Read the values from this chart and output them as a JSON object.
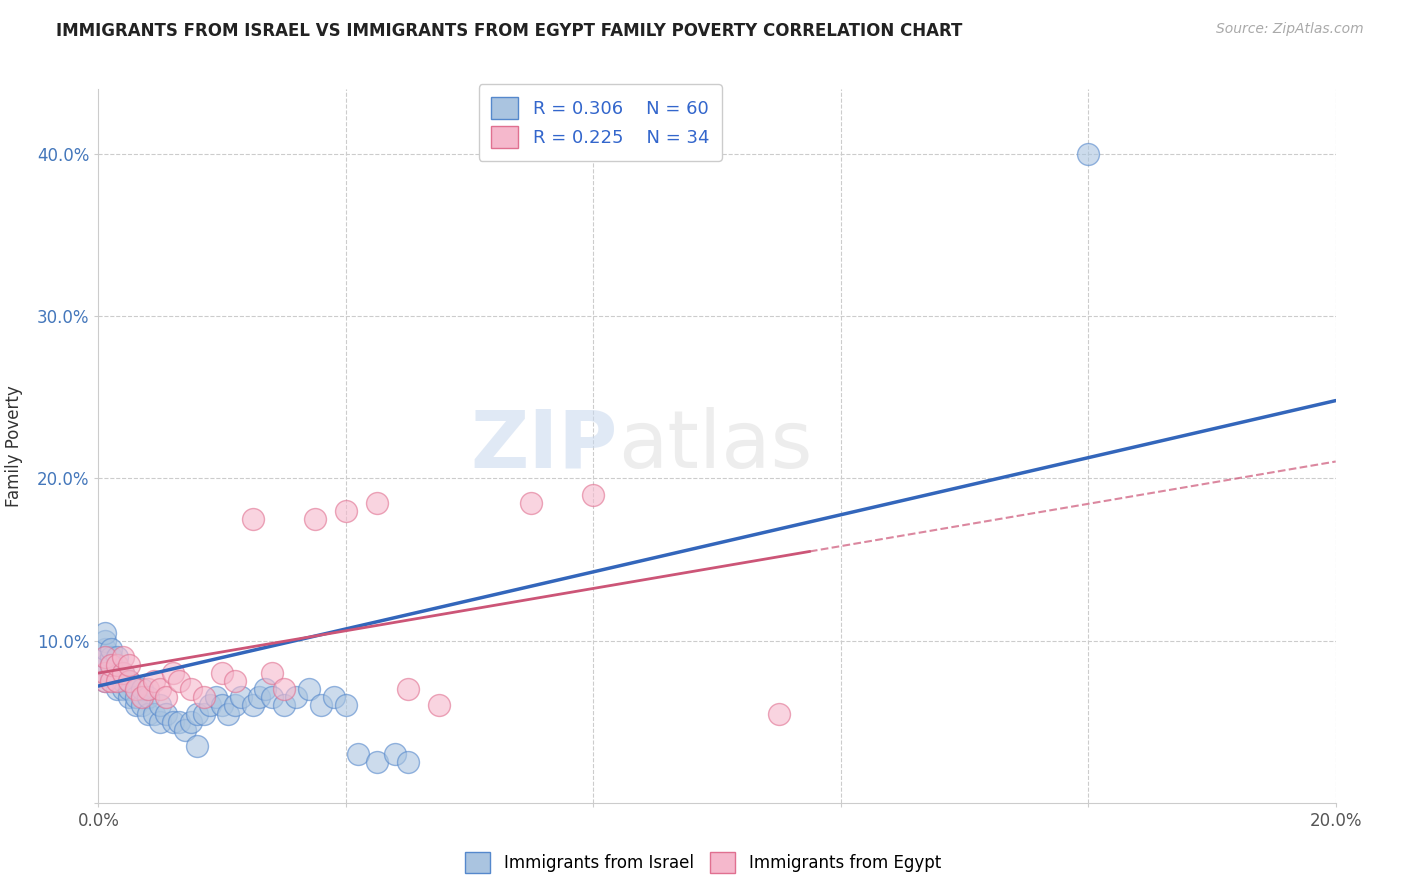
{
  "title": "IMMIGRANTS FROM ISRAEL VS IMMIGRANTS FROM EGYPT FAMILY POVERTY CORRELATION CHART",
  "source": "Source: ZipAtlas.com",
  "ylabel": "Family Poverty",
  "xlim": [
    0.0,
    0.2
  ],
  "ylim": [
    0.0,
    0.44
  ],
  "israel_color": "#aac4e0",
  "israel_edge_color": "#5588cc",
  "egypt_color": "#f5b8cc",
  "egypt_edge_color": "#e07090",
  "israel_line_color": "#3366bb",
  "egypt_line_color": "#cc5577",
  "israel_R": 0.306,
  "israel_N": 60,
  "egypt_R": 0.225,
  "egypt_N": 34,
  "legend_text_color": "#3366cc",
  "watermark_zip": "ZIP",
  "watermark_atlas": "atlas",
  "israel_x": [
    0.001,
    0.001,
    0.001,
    0.001,
    0.001,
    0.001,
    0.001,
    0.002,
    0.002,
    0.002,
    0.002,
    0.002,
    0.003,
    0.003,
    0.003,
    0.003,
    0.004,
    0.004,
    0.004,
    0.005,
    0.005,
    0.005,
    0.006,
    0.006,
    0.007,
    0.007,
    0.008,
    0.008,
    0.009,
    0.01,
    0.01,
    0.011,
    0.012,
    0.013,
    0.014,
    0.015,
    0.016,
    0.016,
    0.017,
    0.018,
    0.019,
    0.02,
    0.021,
    0.022,
    0.023,
    0.025,
    0.026,
    0.027,
    0.028,
    0.03,
    0.032,
    0.034,
    0.036,
    0.038,
    0.04,
    0.042,
    0.045,
    0.048,
    0.05,
    0.16
  ],
  "israel_y": [
    0.075,
    0.08,
    0.085,
    0.09,
    0.095,
    0.1,
    0.105,
    0.075,
    0.08,
    0.085,
    0.09,
    0.095,
    0.07,
    0.075,
    0.08,
    0.09,
    0.07,
    0.075,
    0.08,
    0.065,
    0.07,
    0.075,
    0.06,
    0.065,
    0.06,
    0.07,
    0.055,
    0.065,
    0.055,
    0.05,
    0.06,
    0.055,
    0.05,
    0.05,
    0.045,
    0.05,
    0.055,
    0.035,
    0.055,
    0.06,
    0.065,
    0.06,
    0.055,
    0.06,
    0.065,
    0.06,
    0.065,
    0.07,
    0.065,
    0.06,
    0.065,
    0.07,
    0.06,
    0.065,
    0.06,
    0.03,
    0.025,
    0.03,
    0.025,
    0.4
  ],
  "egypt_x": [
    0.001,
    0.001,
    0.001,
    0.002,
    0.002,
    0.003,
    0.003,
    0.004,
    0.004,
    0.005,
    0.005,
    0.006,
    0.007,
    0.008,
    0.009,
    0.01,
    0.011,
    0.012,
    0.013,
    0.015,
    0.017,
    0.02,
    0.022,
    0.025,
    0.028,
    0.03,
    0.035,
    0.04,
    0.045,
    0.05,
    0.055,
    0.07,
    0.08,
    0.11
  ],
  "egypt_y": [
    0.075,
    0.08,
    0.09,
    0.075,
    0.085,
    0.075,
    0.085,
    0.08,
    0.09,
    0.075,
    0.085,
    0.07,
    0.065,
    0.07,
    0.075,
    0.07,
    0.065,
    0.08,
    0.075,
    0.07,
    0.065,
    0.08,
    0.075,
    0.175,
    0.08,
    0.07,
    0.175,
    0.18,
    0.185,
    0.07,
    0.06,
    0.185,
    0.19,
    0.055
  ],
  "israel_line_x": [
    0.0,
    0.2
  ],
  "israel_line_y": [
    0.072,
    0.248
  ],
  "egypt_line_x": [
    0.0,
    0.115
  ],
  "egypt_line_y": [
    0.08,
    0.155
  ]
}
